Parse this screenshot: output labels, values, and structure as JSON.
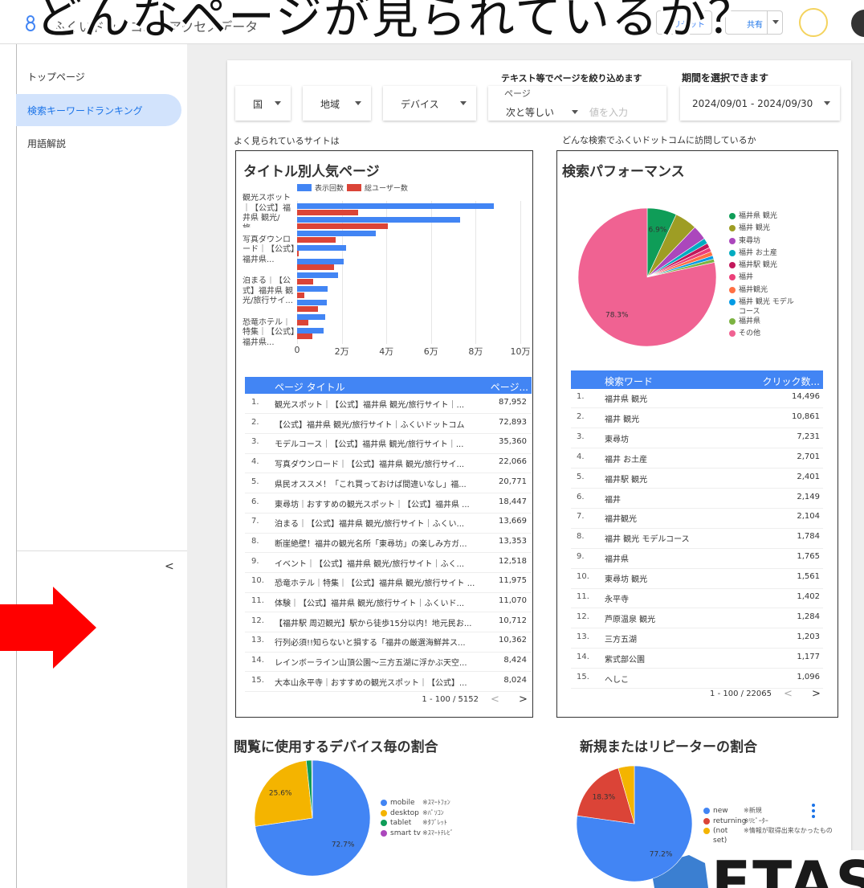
{
  "overlay_title": "どんなページが見られているか？",
  "header": {
    "title": "「ふくいドットコム」アクセスデータ",
    "reset": "リセット",
    "share": "共有"
  },
  "sidebar": {
    "items": [
      "トップページ",
      "検索キーワードランキング",
      "用語解説"
    ],
    "collapse": "<"
  },
  "filters": {
    "country": "国",
    "region": "地域",
    "device": "デバイス",
    "text_hint": "テキスト等でページを絞り込めます",
    "page_label": "ページ",
    "operator": "次と等しい",
    "placeholder": "値を入力",
    "period_hint": "期間を選択できます",
    "period": "2024/09/01 - 2024/09/30"
  },
  "captions": {
    "left": "よく見られているサイトは",
    "right": "どんな検索でふくいドットコムに訪問しているか"
  },
  "bar_chart": {
    "type": "bar",
    "orientation": "horizontal",
    "title": "タイトル別人気ページ",
    "categories": [
      "観光スポット｜【公式】福井県 観光/旅...",
      null,
      null,
      "写真ダウンロード｜【公式】福井県...",
      null,
      null,
      "泊まる｜【公式】福井県 観光/旅行サイ...",
      null,
      null,
      "恐竜ホテル｜特集｜【公式】福井県..."
    ],
    "series": [
      {
        "name": "表示回数",
        "color": "#4285f4",
        "values": [
          87952,
          72893,
          35360,
          22066,
          20771,
          18447,
          13669,
          13353,
          12518,
          11975
        ]
      },
      {
        "name": "総ユーザー数",
        "color": "#db4437",
        "values": [
          27300,
          40600,
          17300,
          700,
          16500,
          7200,
          3200,
          9400,
          5000,
          7000
        ]
      }
    ],
    "xlim": [
      0,
      100000
    ],
    "xticks": [
      0,
      {
        "value": 20000,
        "label": "2万"
      },
      {
        "value": 40000,
        "label": "4万"
      },
      {
        "value": 60000,
        "label": "6万"
      },
      {
        "value": 80000,
        "label": "8万"
      },
      {
        "value": 100000,
        "label": "10万"
      }
    ],
    "grid": true
  },
  "page_table": {
    "headers": [
      "ページ タイトル",
      "ページ..."
    ],
    "rows": [
      [
        "1.",
        "観光スポット｜【公式】福井県 観光/旅行サイト｜...",
        "87,952"
      ],
      [
        "2.",
        "【公式】福井県 観光/旅行サイト｜ふくいドットコム",
        "72,893"
      ],
      [
        "3.",
        "モデルコース｜【公式】福井県 観光/旅行サイト｜...",
        "35,360"
      ],
      [
        "4.",
        "写真ダウンロード｜【公式】福井県 観光/旅行サイ...",
        "22,066"
      ],
      [
        "5.",
        "県民オススメ！「これ買っておけば間違いなし」福...",
        "20,771"
      ],
      [
        "6.",
        "東尋坊｜おすすめの観光スポット｜【公式】福井県 ...",
        "18,447"
      ],
      [
        "7.",
        "泊まる｜【公式】福井県 観光/旅行サイト｜ふくい...",
        "13,669"
      ],
      [
        "8.",
        "断崖絶壁！福井の観光名所「東尋坊」の楽しみ方ガ...",
        "13,353"
      ],
      [
        "9.",
        "イベント｜【公式】福井県 観光/旅行サイト｜ふく...",
        "12,518"
      ],
      [
        "10.",
        "恐竜ホテル｜特集｜【公式】福井県 観光/旅行サイト ...",
        "11,975"
      ],
      [
        "11.",
        "体験｜【公式】福井県 観光/旅行サイト｜ふくいド...",
        "11,070"
      ],
      [
        "12.",
        "【福井駅 周辺観光】駅から徒歩15分以内！地元民お...",
        "10,712"
      ],
      [
        "13.",
        "行列必須!!知らないと損する「福井の厳選海鮮丼ス...",
        "10,362"
      ],
      [
        "14.",
        "レインボーライン山頂公園〜三方五湖に浮かぶ天空...",
        "8,424"
      ],
      [
        "15.",
        "大本山永平寺｜おすすめの観光スポット｜【公式】...",
        "8,024"
      ]
    ],
    "pagination": "1 - 100 / 5152",
    "prev": "<",
    "next": ">"
  },
  "search_pie": {
    "type": "pie",
    "title": "検索パフォーマンス",
    "categories": [
      "福井県 観光",
      "福井 観光",
      "東尋坊",
      "福井 お土産",
      "福井駅 観光",
      "福井",
      "福井観光",
      "福井 観光 モデルコース",
      "福井県",
      "その他"
    ],
    "colors": [
      "#0f9d58",
      "#9e9d24",
      "#ab47bc",
      "#00acc1",
      "#c2185b",
      "#ec407a",
      "#ff7043",
      "#039be5",
      "#7cb342",
      "#f06292"
    ],
    "values": [
      6.9,
      5.2,
      3.4,
      1.3,
      1.1,
      1.0,
      1.0,
      0.8,
      0.8,
      78.3
    ],
    "value_labels": [
      "6.9%",
      null,
      null,
      null,
      null,
      null,
      null,
      null,
      null,
      "78.3%"
    ]
  },
  "keyword_table": {
    "headers": [
      "検索ワード",
      "クリック数..."
    ],
    "rows": [
      [
        "1.",
        "福井県 観光",
        "14,496"
      ],
      [
        "2.",
        "福井 観光",
        "10,861"
      ],
      [
        "3.",
        "東尋坊",
        "7,231"
      ],
      [
        "4.",
        "福井 お土産",
        "2,701"
      ],
      [
        "5.",
        "福井駅 観光",
        "2,401"
      ],
      [
        "6.",
        "福井",
        "2,149"
      ],
      [
        "7.",
        "福井観光",
        "2,104"
      ],
      [
        "8.",
        "福井 観光 モデルコース",
        "1,784"
      ],
      [
        "9.",
        "福井県",
        "1,765"
      ],
      [
        "10.",
        "東尋坊 観光",
        "1,561"
      ],
      [
        "11.",
        "永平寺",
        "1,402"
      ],
      [
        "12.",
        "芦原温泉 観光",
        "1,284"
      ],
      [
        "13.",
        "三方五湖",
        "1,203"
      ],
      [
        "14.",
        "紫式部公園",
        "1,177"
      ],
      [
        "15.",
        "へしこ",
        "1,096"
      ]
    ],
    "pagination": "1 - 100 / 22065",
    "prev": "<",
    "next": ">"
  },
  "device_pie": {
    "type": "pie",
    "title": "閲覧に使用するデバイス毎の割合",
    "categories": [
      "mobile",
      "desktop",
      "tablet",
      "smart tv"
    ],
    "notes": [
      "※ｽﾏｰﾄﾌｫﾝ",
      "※ﾊﾟｿｺﾝ",
      "※ﾀﾌﾞﾚｯﾄ",
      "※ｽﾏｰﾄﾃﾚﾋﾞ"
    ],
    "colors": [
      "#4285f4",
      "#f4b400",
      "#0f9d58",
      "#ab47bc"
    ],
    "values": [
      72.7,
      25.6,
      1.5,
      0.2
    ],
    "value_labels": [
      "72.7%",
      "25.6%",
      null,
      null
    ]
  },
  "visitor_pie": {
    "type": "pie",
    "title": "新規またはリピーターの割合",
    "categories": [
      "new",
      "returning",
      "(not set)"
    ],
    "notes": [
      "※新規",
      "※ﾘﾋﾟｰﾀｰ",
      "※情報が取得出来なかったもの"
    ],
    "colors": [
      "#4285f4",
      "#db4437",
      "#f4b400"
    ],
    "values": [
      77.2,
      18.3,
      4.5
    ],
    "value_labels": [
      "77.2%",
      "18.3%",
      null
    ]
  },
  "logo": "ETAS"
}
